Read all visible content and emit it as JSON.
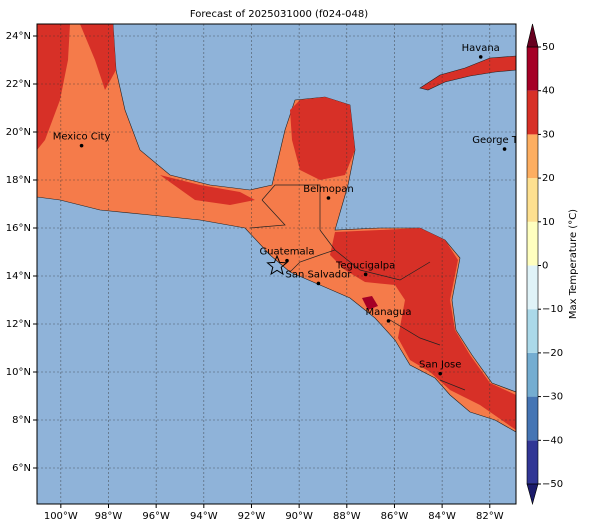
{
  "title": "Forecast of 2025031000 (f024-048)",
  "map": {
    "xlim": [
      -101,
      -80.9
    ],
    "ylim": [
      4.5,
      24.5
    ],
    "xticks": [
      {
        "value": -100,
        "label": "100°W"
      },
      {
        "value": -98,
        "label": "98°W"
      },
      {
        "value": -96,
        "label": "96°W"
      },
      {
        "value": -94,
        "label": "94°W"
      },
      {
        "value": -92,
        "label": "92°W"
      },
      {
        "value": -90,
        "label": "90°W"
      },
      {
        "value": -88,
        "label": "88°W"
      },
      {
        "value": -86,
        "label": "86°W"
      },
      {
        "value": -84,
        "label": "84°W"
      },
      {
        "value": -82,
        "label": "82°W"
      }
    ],
    "yticks": [
      {
        "value": 24,
        "label": "24°N"
      },
      {
        "value": 22,
        "label": "22°N"
      },
      {
        "value": 20,
        "label": "20°N"
      },
      {
        "value": 18,
        "label": "18°N"
      },
      {
        "value": 16,
        "label": "16°N"
      },
      {
        "value": 14,
        "label": "14°N"
      },
      {
        "value": 12,
        "label": "12°N"
      },
      {
        "value": 10,
        "label": "10°N"
      },
      {
        "value": 8,
        "label": "8°N"
      },
      {
        "value": 6,
        "label": "6°N"
      }
    ],
    "grid": true,
    "cities": [
      {
        "name": "Mexico City",
        "lon": -99.13,
        "lat": 19.43
      },
      {
        "name": "Havana",
        "lon": -82.38,
        "lat": 23.13
      },
      {
        "name": "George Town",
        "lon": -81.38,
        "lat": 19.29
      },
      {
        "name": "Belmopan",
        "lon": -88.77,
        "lat": 17.25
      },
      {
        "name": "Guatemala",
        "lon": -90.51,
        "lat": 14.64
      },
      {
        "name": "San Salvador",
        "lon": -89.19,
        "lat": 13.69
      },
      {
        "name": "Tegucigalpa",
        "lon": -87.21,
        "lat": 14.07
      },
      {
        "name": "Managua",
        "lon": -86.25,
        "lat": 12.13
      },
      {
        "name": "San Jose",
        "lon": -84.08,
        "lat": 9.93
      }
    ]
  },
  "colorbar": {
    "label": "Max Temperature (°C)",
    "lim": [
      -50,
      50
    ],
    "ticks": [
      {
        "value": -50,
        "label": "−50"
      },
      {
        "value": -40,
        "label": "−40"
      },
      {
        "value": -30,
        "label": "−30"
      },
      {
        "value": -20,
        "label": "−20"
      },
      {
        "value": -10,
        "label": "−10"
      },
      0,
      10,
      20,
      30,
      40,
      50
    ],
    "colors": [
      "#313695",
      "#4575b4",
      "#74add1",
      "#abd9e9",
      "#e0f3f8",
      "#ffffbf",
      "#fee090",
      "#fdae61",
      "#d73027",
      "#a50026"
    ],
    "extend_colors": [
      "#1b1b6b",
      "#67001f"
    ]
  }
}
